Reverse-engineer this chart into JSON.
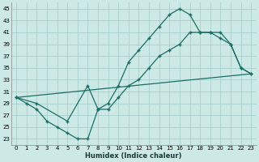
{
  "xlabel": "Humidex (Indice chaleur)",
  "xlim": [
    -0.5,
    23.5
  ],
  "ylim": [
    22,
    46
  ],
  "yticks": [
    23,
    25,
    27,
    29,
    31,
    33,
    35,
    37,
    39,
    41,
    43,
    45
  ],
  "xticks": [
    0,
    1,
    2,
    3,
    4,
    5,
    6,
    7,
    8,
    9,
    10,
    11,
    12,
    13,
    14,
    15,
    16,
    17,
    18,
    19,
    20,
    21,
    22,
    23
  ],
  "bg_color": "#cce9e5",
  "grid_color": "#aacfcc",
  "line_color": "#1a6e65",
  "line1_x": [
    0,
    1,
    2,
    3,
    4,
    5,
    6,
    7,
    8,
    9,
    10,
    11,
    12,
    13,
    14,
    15,
    16,
    17,
    18,
    19,
    20,
    21,
    22,
    23
  ],
  "line1_y": [
    30,
    29,
    28,
    26,
    25,
    24,
    23,
    23,
    28,
    29,
    32,
    36,
    38,
    40,
    42,
    44,
    45,
    44,
    41,
    41,
    40,
    39,
    35,
    34
  ],
  "line2_x": [
    0,
    2,
    5,
    7,
    8,
    9,
    10,
    11,
    12,
    13,
    14,
    15,
    16,
    17,
    18,
    19,
    20,
    21,
    22,
    23
  ],
  "line2_y": [
    30,
    29,
    26,
    32,
    28,
    28,
    30,
    32,
    33,
    35,
    37,
    38,
    39,
    41,
    41,
    41,
    41,
    39,
    35,
    34
  ],
  "line3_x": [
    0,
    23
  ],
  "line3_y": [
    30,
    34
  ]
}
